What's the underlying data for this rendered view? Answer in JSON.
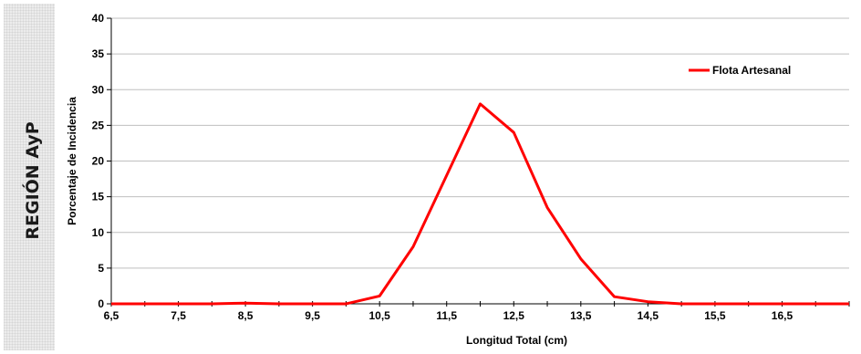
{
  "panel": {
    "label": "REGIÓN AyP"
  },
  "chart_data": {
    "type": "line",
    "title": "",
    "xlabel": "Longitud Total (cm)",
    "ylabel": "Porcentaje de Incidencia",
    "xlim": [
      6.5,
      17.5
    ],
    "ylim": [
      0,
      40
    ],
    "x_ticks": [
      6.5,
      7.5,
      8.5,
      9.5,
      10.5,
      11.5,
      12.5,
      13.5,
      14.5,
      15.5,
      16.5
    ],
    "x_tick_labels": [
      "6,5",
      "7,5",
      "8,5",
      "9,5",
      "10,5",
      "11,5",
      "12,5",
      "13,5",
      "14,5",
      "15,5",
      "16,5"
    ],
    "y_ticks": [
      0,
      5,
      10,
      15,
      20,
      25,
      30,
      35,
      40
    ],
    "y_tick_labels": [
      "0",
      "5",
      "10",
      "15",
      "20",
      "25",
      "30",
      "35",
      "40"
    ],
    "grid": "horizontal",
    "legend_position": "top-right",
    "series": [
      {
        "name": "Flota Artesanal",
        "color": "#ff0000",
        "x": [
          6.5,
          7.0,
          7.5,
          8.0,
          8.5,
          9.0,
          9.5,
          10.0,
          10.5,
          11.0,
          11.5,
          12.0,
          12.5,
          13.0,
          13.5,
          14.0,
          14.5,
          15.0,
          15.5,
          16.0,
          16.5,
          17.0,
          17.5
        ],
        "values": [
          0,
          0,
          0,
          0,
          0.1,
          0,
          0,
          0,
          1.1,
          8,
          18,
          28,
          24,
          13.5,
          6.3,
          1,
          0.3,
          0,
          0,
          0,
          0,
          0,
          0
        ]
      }
    ]
  }
}
